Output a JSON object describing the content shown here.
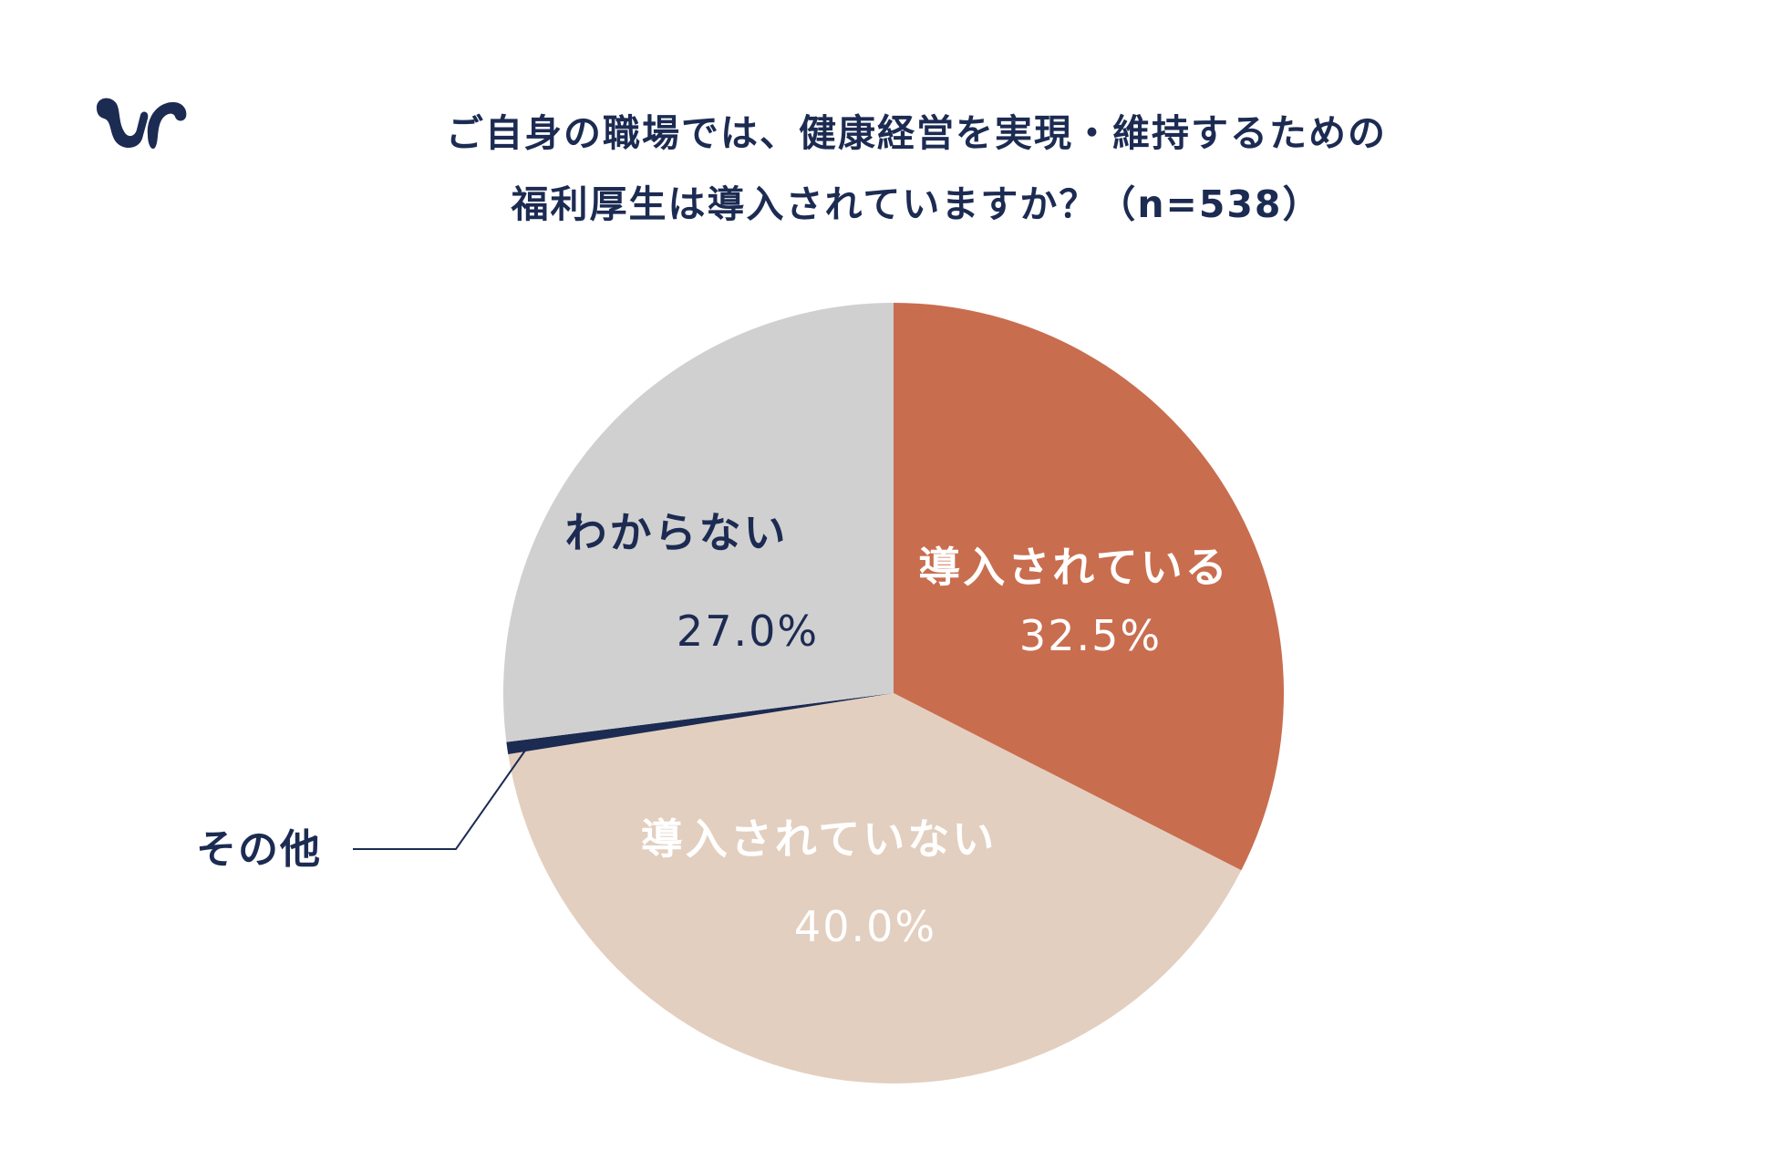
{
  "header": {
    "title_line1": "ご自身の職場では、健康経営を実現・維持するための",
    "title_line2": "福利厚生は導入されていますか？（n=538）"
  },
  "logo": {
    "icon": "brand-logo-icon",
    "color": "#1c2b52"
  },
  "colors": {
    "text_dark": "#1c2b52",
    "text_light": "#ffffff"
  },
  "chart_data": {
    "type": "pie",
    "start_angle_deg": 0,
    "direction": "clockwise",
    "slices": [
      {
        "label": "導入されている",
        "value": 32.5,
        "pct_text": "32.5%",
        "color": "#c96d4f",
        "text_color": "#ffffff"
      },
      {
        "label": "導入されていない",
        "value": 40.0,
        "pct_text": "40.0%",
        "color": "#e3cfbf",
        "text_color": "#ffffff"
      },
      {
        "label": "その他",
        "value": 0.5,
        "pct_text": "",
        "color": "#1c2b52",
        "text_color": "#1c2b52"
      },
      {
        "label": "わからない",
        "value": 27.0,
        "pct_text": "27.0%",
        "color": "#d1d0d0",
        "text_color": "#1c2b52"
      }
    ]
  }
}
